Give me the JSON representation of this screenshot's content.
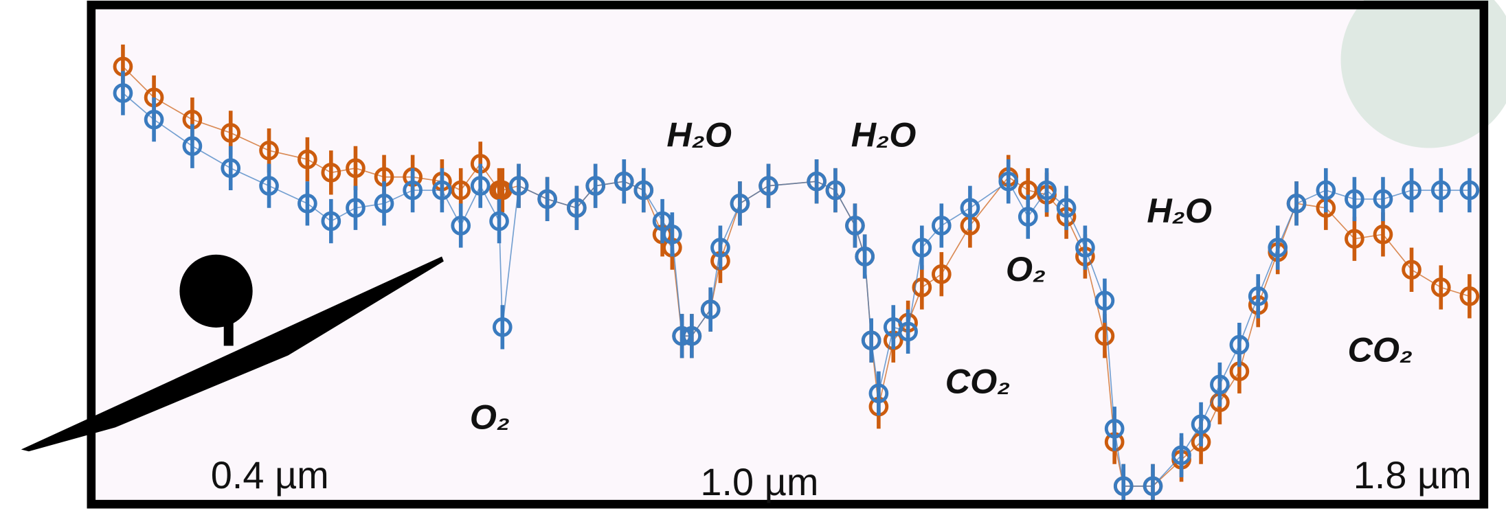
{
  "chart_data": {
    "type": "scatter",
    "xlim": [
      0.22,
      1.87
    ],
    "ylim": [
      0,
      1
    ],
    "xticks": [
      {
        "value": 0.4,
        "label": "0.4 µm"
      },
      {
        "value": 1.0,
        "label": "1.0 µm"
      },
      {
        "value": 1.8,
        "label": "1.8 µm"
      }
    ],
    "x": [
      0.22,
      0.258,
      0.305,
      0.352,
      0.399,
      0.446,
      0.475,
      0.505,
      0.54,
      0.575,
      0.611,
      0.634,
      0.658,
      0.681,
      0.685,
      0.705,
      0.74,
      0.776,
      0.799,
      0.834,
      0.858,
      0.881,
      0.893,
      0.905,
      0.917,
      0.94,
      0.952,
      0.976,
      1.011,
      1.07,
      1.093,
      1.117,
      1.129,
      1.137,
      1.146,
      1.164,
      1.182,
      1.199,
      1.223,
      1.258,
      1.305,
      1.329,
      1.352,
      1.376,
      1.399,
      1.423,
      1.435,
      1.446,
      1.482,
      1.517,
      1.541,
      1.564,
      1.588,
      1.611,
      1.635,
      1.658,
      1.694,
      1.729,
      1.764,
      1.799,
      1.835,
      1.87
    ],
    "series": [
      {
        "color": "#cc5c0e",
        "error": 0.05,
        "values": [
          0.98,
          0.91,
          0.86,
          0.83,
          0.79,
          0.77,
          0.74,
          0.75,
          0.73,
          0.73,
          0.72,
          0.7,
          0.76,
          0.7,
          0.7,
          0.71,
          0.68,
          0.66,
          0.71,
          0.72,
          0.7,
          0.6,
          0.57,
          0.37,
          0.37,
          0.43,
          0.54,
          0.67,
          0.71,
          0.72,
          0.7,
          0.62,
          0.55,
          0.36,
          0.21,
          0.36,
          0.4,
          0.48,
          0.51,
          0.62,
          0.73,
          0.7,
          0.69,
          0.64,
          0.55,
          0.37,
          0.13,
          0.03,
          0.03,
          0.09,
          0.13,
          0.22,
          0.29,
          0.44,
          0.56,
          0.67,
          0.66,
          0.59,
          0.6,
          0.52,
          0.48,
          0.46
        ]
      },
      {
        "color": "#3a7bbf",
        "error": 0.05,
        "values": [
          0.92,
          0.86,
          0.8,
          0.75,
          0.71,
          0.67,
          0.63,
          0.66,
          0.67,
          0.7,
          0.7,
          0.62,
          0.71,
          0.63,
          0.39,
          0.71,
          0.68,
          0.66,
          0.71,
          0.72,
          0.7,
          0.63,
          0.6,
          0.37,
          0.37,
          0.43,
          0.57,
          0.67,
          0.71,
          0.72,
          0.7,
          0.62,
          0.55,
          0.36,
          0.24,
          0.39,
          0.38,
          0.57,
          0.62,
          0.66,
          0.72,
          0.64,
          0.7,
          0.66,
          0.57,
          0.45,
          0.16,
          0.03,
          0.03,
          0.1,
          0.17,
          0.26,
          0.35,
          0.46,
          0.57,
          0.67,
          0.7,
          0.68,
          0.68,
          0.7,
          0.7,
          0.7
        ]
      }
    ],
    "annotations": [
      "H₂O",
      "H₂O",
      "H₂O",
      "O₂",
      "O₂",
      "CO₂",
      "CO₂"
    ]
  }
}
